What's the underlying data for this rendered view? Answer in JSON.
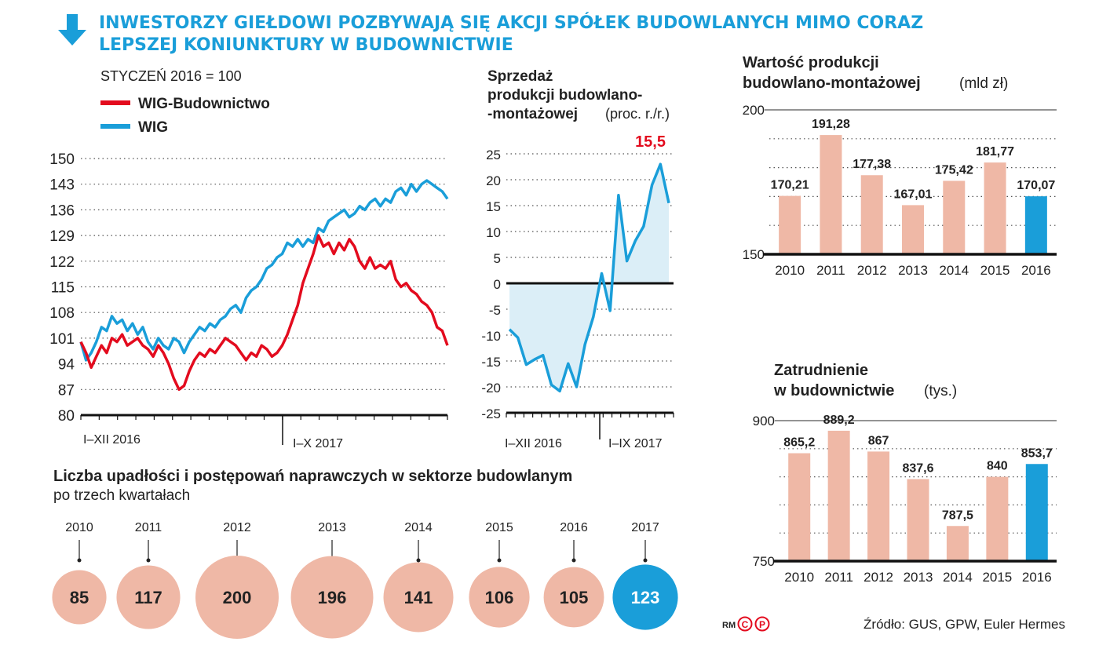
{
  "headline": {
    "line1": "INWESTORZY GIEŁDOWI POZBYWAJĄ SIĘ AKCJI SPÓŁEK BUDOWLANYCH MIMO CORAZ",
    "line2": "LEPSZEJ KONIUNKTURY W BUDOWNICTWIE",
    "icon": "arrow-down-icon"
  },
  "colors": {
    "accent": "#1a9ed9",
    "red": "#e30b1e",
    "peach": "#efb8a6",
    "area": "#dbeef7",
    "axis": "#111111"
  },
  "source": "Źródło: GUS, GPW, Euler Hermes",
  "credit": {
    "rm": "RM",
    "c": "C",
    "p": "P"
  },
  "chart_data": [
    {
      "id": "indices",
      "type": "line",
      "subtitle": "STYCZEŃ 2016 = 100",
      "y_ticks": [
        150,
        143,
        136,
        129,
        122,
        115,
        108,
        101,
        94,
        87,
        80
      ],
      "ylim": [
        80,
        150
      ],
      "x_labels": [
        "I–XII 2016",
        "I–X 2017"
      ],
      "series": [
        {
          "name": "WIG-Budownictwo",
          "color": "#e30b1e",
          "values": [
            100,
            97,
            93,
            96,
            99,
            97,
            101,
            100,
            102,
            99,
            100,
            101,
            99,
            98,
            96,
            99,
            97,
            94,
            90,
            87,
            88,
            92,
            95,
            97,
            96,
            98,
            97,
            99,
            101,
            100,
            99,
            97,
            95,
            97,
            96,
            99,
            98,
            96,
            97,
            99,
            102,
            106,
            110,
            116,
            120,
            124,
            129,
            126,
            127,
            124,
            127,
            125,
            128,
            126,
            122,
            120,
            123,
            120,
            121,
            120,
            122,
            117,
            115,
            116,
            114,
            113,
            111,
            110,
            108,
            104,
            103,
            99
          ]
        },
        {
          "name": "WIG",
          "color": "#1a9ed9",
          "values": [
            100,
            95,
            97,
            100,
            104,
            103,
            107,
            105,
            106,
            103,
            105,
            102,
            104,
            100,
            98,
            101,
            99,
            98,
            101,
            100,
            97,
            100,
            102,
            104,
            103,
            105,
            104,
            106,
            107,
            109,
            110,
            108,
            112,
            114,
            115,
            117,
            120,
            121,
            123,
            124,
            127,
            126,
            128,
            126,
            128,
            127,
            131,
            130,
            133,
            134,
            135,
            136,
            134,
            135,
            137,
            136,
            138,
            139,
            137,
            139,
            138,
            141,
            142,
            140,
            143,
            141,
            143,
            144,
            143,
            142,
            141,
            139
          ]
        }
      ]
    },
    {
      "id": "sales",
      "type": "area",
      "title_l1": "Sprzedaż",
      "title_l2": "produkcji budowlano-",
      "title_l3": "-montażowej",
      "unit": "(proc. r./r.)",
      "highlight": "15,5",
      "y_ticks": [
        25,
        20,
        15,
        10,
        5,
        0,
        -5,
        -10,
        -15,
        -20,
        -25
      ],
      "ylim": [
        -25,
        25
      ],
      "x_labels": [
        "I–XII 2016",
        "I–IX 2017"
      ],
      "values": [
        -8.9,
        -10.5,
        -15.7,
        -14.7,
        -13.9,
        -19.6,
        -20.8,
        -15.5,
        -20.0,
        -11.8,
        -6.5,
        1.9,
        -5.3,
        17.0,
        4.3,
        8.2,
        11.0,
        19.0,
        23.0,
        15.5
      ]
    },
    {
      "id": "value",
      "type": "bar",
      "title_l1": "Wartość produkcji",
      "title_l2": "budowlano-montażowej",
      "unit": "(mld zł)",
      "y_ticks": [
        200,
        150
      ],
      "ylim": [
        150,
        200
      ],
      "categories": [
        "2010",
        "2011",
        "2012",
        "2013",
        "2014",
        "2015",
        "2016"
      ],
      "values": [
        170.21,
        191.28,
        177.38,
        167.01,
        175.42,
        181.77,
        170.07
      ],
      "labels": [
        "170,21",
        "191,28",
        "177,38",
        "167,01",
        "175,42",
        "181,77",
        "170,07"
      ]
    },
    {
      "id": "employment",
      "type": "bar",
      "title_l1": "Zatrudnienie",
      "title_l2": "w budownictwie",
      "unit": "(tys.)",
      "y_ticks": [
        900,
        750
      ],
      "ylim": [
        750,
        900
      ],
      "categories": [
        "2010",
        "2011",
        "2012",
        "2013",
        "2014",
        "2015",
        "2016"
      ],
      "values": [
        865.2,
        889.2,
        867,
        837.6,
        787.5,
        840,
        853.7
      ],
      "labels": [
        "865,2",
        "889,2",
        "867",
        "837,6",
        "787,5",
        "840",
        "853,7"
      ]
    },
    {
      "id": "bankruptcies",
      "type": "bubble",
      "title": "Liczba upadłości i postępowań naprawczych w sektorze budowlanym",
      "subtitle": "po trzech kwartałach",
      "categories": [
        "2010",
        "2011",
        "2012",
        "2013",
        "2014",
        "2015",
        "2016",
        "2017"
      ],
      "values": [
        85,
        117,
        200,
        196,
        141,
        106,
        105,
        123
      ]
    }
  ]
}
